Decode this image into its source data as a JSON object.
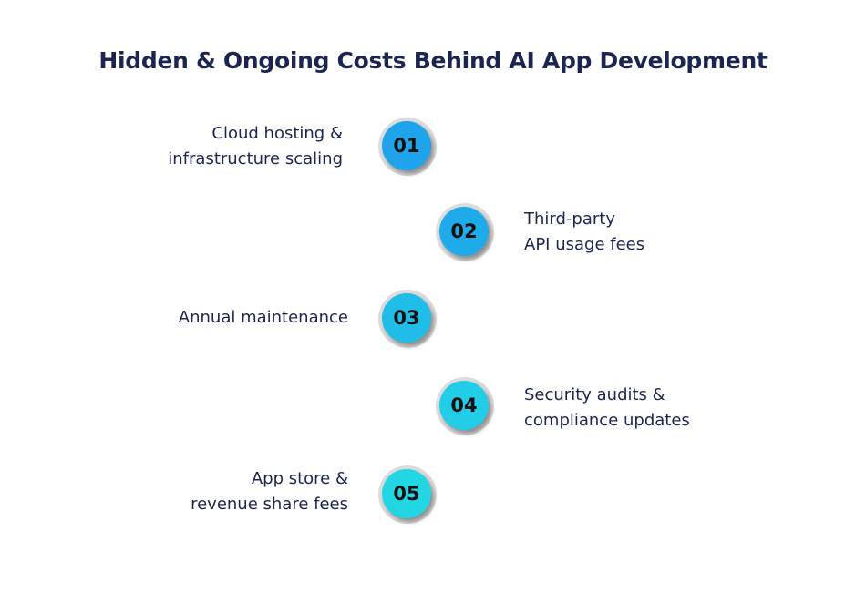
{
  "title": "Hidden & Ongoing Costs Behind AI App Development",
  "items": [
    {
      "number": "01",
      "lines": [
        "Cloud hosting &",
        "infrastructure scaling"
      ],
      "color": "#1fa3ea"
    },
    {
      "number": "02",
      "lines": [
        "Third-party",
        "API usage fees"
      ],
      "color": "#1fabe9"
    },
    {
      "number": "03",
      "lines": [
        "Annual maintenance"
      ],
      "color": "#20bde9"
    },
    {
      "number": "04",
      "lines": [
        "Security audits &",
        "compliance updates"
      ],
      "color": "#21cde7"
    },
    {
      "number": "05",
      "lines": [
        "App store &",
        "revenue share fees"
      ],
      "color": "#22d6e4"
    }
  ]
}
